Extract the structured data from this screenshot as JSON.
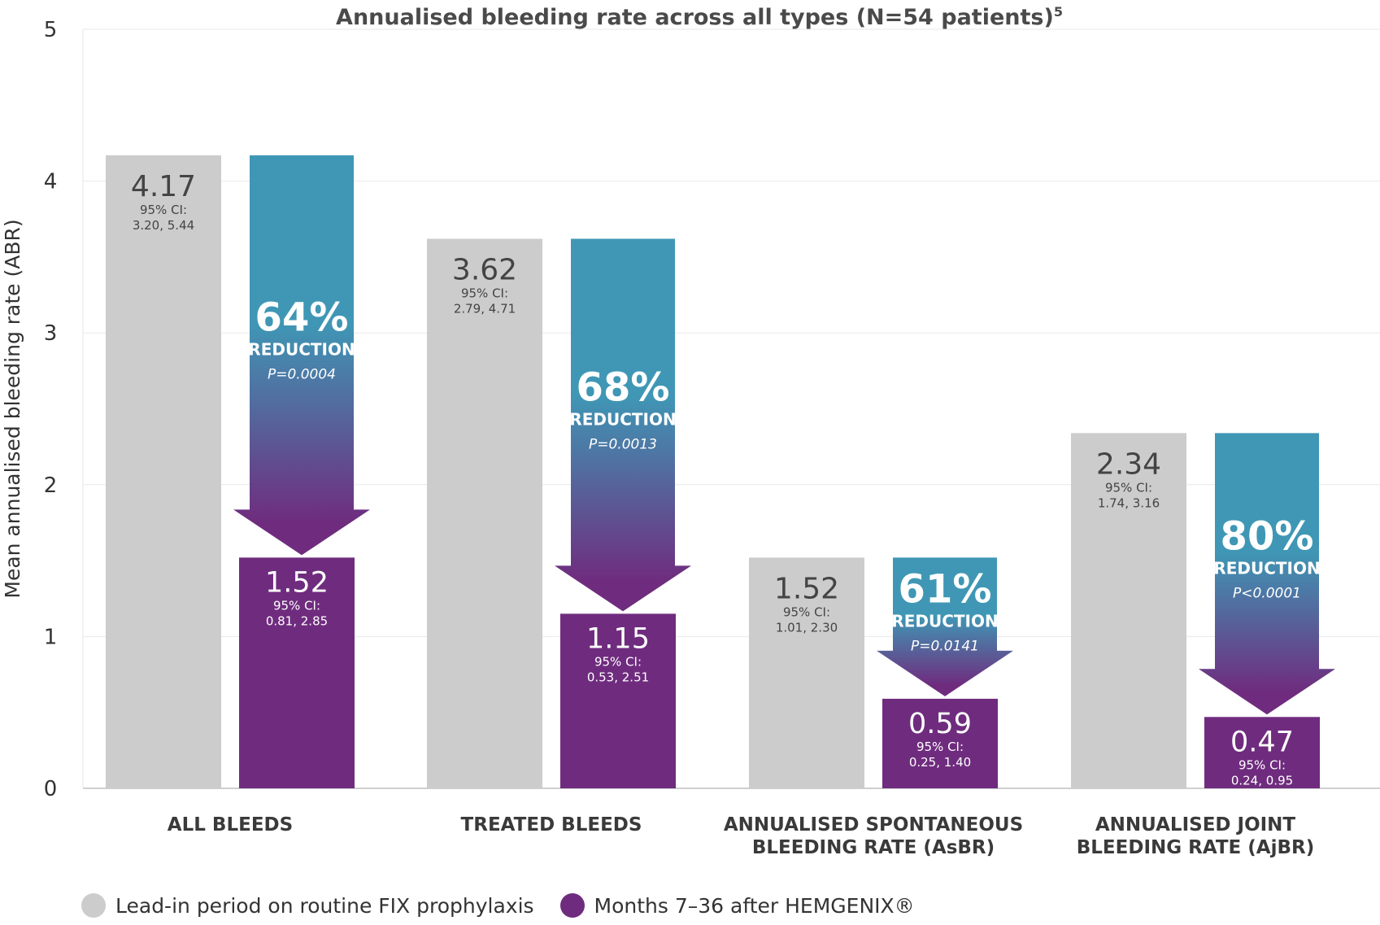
{
  "chart_data": {
    "type": "bar",
    "title": "Annualised bleeding rate across all types (N=54 patients)",
    "title_superscript": "5",
    "ylabel": "Mean annualised bleeding rate (ABR)",
    "ylim": [
      0,
      5
    ],
    "y_ticks": [
      "0",
      "1",
      "2",
      "3",
      "4",
      "5"
    ],
    "grid": true,
    "legend_position": "bottom-left",
    "categories": [
      [
        "ALL BLEEDS"
      ],
      [
        "TREATED BLEEDS"
      ],
      [
        "ANNUALISED SPONTANEOUS",
        "BLEEDING RATE (AsBR)"
      ],
      [
        "ANNUALISED JOINT",
        "BLEEDING RATE (AjBR)"
      ]
    ],
    "series": [
      {
        "name": "Lead-in period on routine FIX prophylaxis",
        "color": "#cccccc",
        "values": [
          4.17,
          3.62,
          1.52,
          2.34
        ],
        "value_labels": [
          "4.17",
          "3.62",
          "1.52",
          "2.34"
        ],
        "ci_label": "95% CI:",
        "ci": [
          "3.20, 5.44",
          "2.79, 4.71",
          "1.01, 2.30",
          "1.74, 3.16"
        ]
      },
      {
        "name": "Months 7–36 after HEMGENIX®",
        "color": "#6f2c7e",
        "values": [
          1.52,
          1.15,
          0.59,
          0.47
        ],
        "value_labels": [
          "1.52",
          "1.15",
          "0.59",
          "0.47"
        ],
        "ci_label": "95% CI:",
        "ci": [
          "0.81, 2.85",
          "0.53, 2.51",
          "0.25, 1.40",
          "0.24, 0.95"
        ]
      }
    ],
    "reductions": [
      {
        "percent": "64%",
        "label": "REDUCTION",
        "p": "P=0.0004"
      },
      {
        "percent": "68%",
        "label": "REDUCTION",
        "p": "P=0.0013"
      },
      {
        "percent": "61%",
        "label": "REDUCTION",
        "p": "P=0.0141"
      },
      {
        "percent": "80%",
        "label": "REDUCTION",
        "p": "P<0.0001"
      }
    ],
    "colors": {
      "arrow_top": "#3f97b5",
      "arrow_bottom": "#6f2c7e",
      "gray_bar": "#cccccc",
      "purple_bar": "#6f2c7e",
      "text_dark": "#444444",
      "text_light": "#ffffff"
    }
  }
}
